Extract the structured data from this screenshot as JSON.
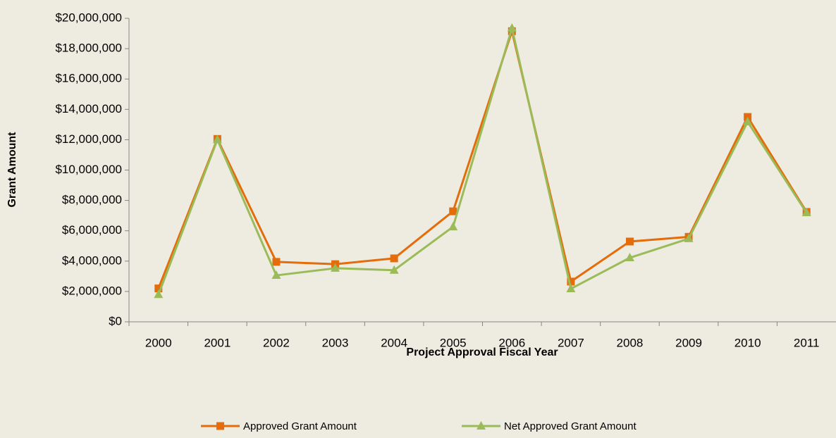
{
  "chart_data": {
    "type": "line",
    "x_label": "Project Approval Fiscal Year",
    "y_label": "Grant Amount",
    "categories": [
      "2000",
      "2001",
      "2002",
      "2003",
      "2004",
      "2005",
      "2006",
      "2007",
      "2008",
      "2009",
      "2010",
      "2011"
    ],
    "series": [
      {
        "name": "Approved Grant Amount",
        "color": "#e46c0a",
        "marker": "square",
        "values": [
          2200000,
          12050000,
          3950000,
          3800000,
          4180000,
          7280000,
          19150000,
          2650000,
          5290000,
          5600000,
          13500000,
          7240000
        ]
      },
      {
        "name": "Net Approved Grant Amount",
        "color": "#9bbb59",
        "marker": "triangle",
        "values": [
          1800000,
          12000000,
          3060000,
          3530000,
          3400000,
          6260000,
          19350000,
          2180000,
          4220000,
          5480000,
          13180000,
          7190000
        ]
      }
    ],
    "ylim": [
      0,
      20000000
    ],
    "yticks": [
      {
        "value": 0,
        "label": "$0"
      },
      {
        "value": 2000000,
        "label": "$2,000,000"
      },
      {
        "value": 4000000,
        "label": "$4,000,000"
      },
      {
        "value": 6000000,
        "label": "$6,000,000"
      },
      {
        "value": 8000000,
        "label": "$8,000,000"
      },
      {
        "value": 10000000,
        "label": "$10,000,000"
      },
      {
        "value": 12000000,
        "label": "$12,000,000"
      },
      {
        "value": 14000000,
        "label": "$14,000,000"
      },
      {
        "value": 16000000,
        "label": "$16,000,000"
      },
      {
        "value": 18000000,
        "label": "$18,000,000"
      },
      {
        "value": 20000000,
        "label": "$20,000,000"
      }
    ],
    "grid": false,
    "legend": "bottom"
  }
}
